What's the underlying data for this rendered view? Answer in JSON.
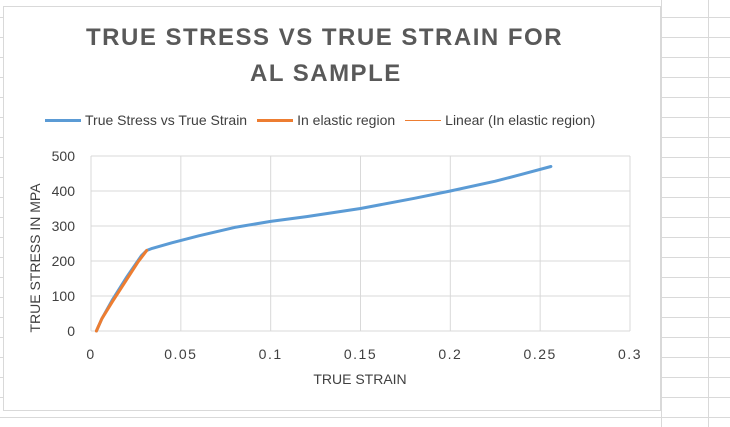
{
  "chart_data": {
    "type": "line",
    "title_lines": [
      "TRUE STRESS VS TRUE STRAIN FOR",
      "AL SAMPLE"
    ],
    "xlabel": "TRUE STRAIN",
    "ylabel": "TRUE STRESS IN MPA",
    "xlim": [
      0,
      0.3
    ],
    "ylim": [
      0,
      500
    ],
    "x_ticks": [
      "0",
      "0.05",
      "0.1",
      "0.15",
      "0.2",
      "0.25",
      "0.3"
    ],
    "y_ticks": [
      "0",
      "100",
      "200",
      "300",
      "400",
      "500"
    ],
    "x_tick_values": [
      0,
      0.05,
      0.1,
      0.15,
      0.2,
      0.25,
      0.3
    ],
    "y_tick_values": [
      0,
      100,
      200,
      300,
      400,
      500
    ],
    "grid": true,
    "legend_position": "top",
    "series": [
      {
        "name": "True Stress vs True Strain",
        "color": "#5b9bd5",
        "x": [
          0.003,
          0.006,
          0.012,
          0.02,
          0.028,
          0.031,
          0.034,
          0.045,
          0.06,
          0.08,
          0.1,
          0.12,
          0.15,
          0.18,
          0.2,
          0.225,
          0.24,
          0.256
        ],
        "y": [
          0,
          35,
          90,
          155,
          215,
          230,
          236,
          252,
          272,
          296,
          313,
          327,
          350,
          379,
          400,
          428,
          448,
          470
        ]
      },
      {
        "name": "In elastic region",
        "color": "#ed7d31",
        "x": [
          0.003,
          0.006,
          0.012,
          0.02,
          0.026,
          0.031
        ],
        "y": [
          0,
          35,
          85,
          148,
          196,
          230
        ]
      },
      {
        "name": "Linear (In elastic region)",
        "color": "#ed7d31",
        "x": [],
        "y": []
      }
    ]
  }
}
